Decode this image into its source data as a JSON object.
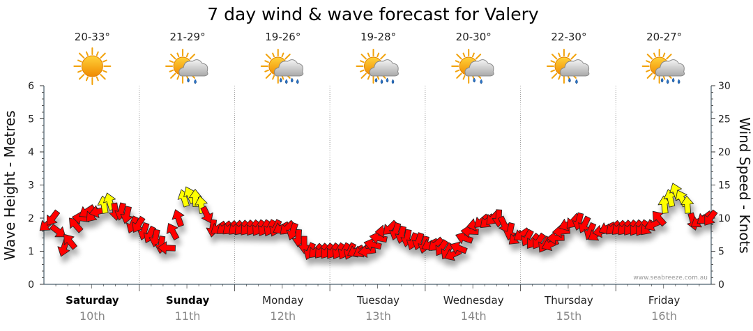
{
  "title": "7 day wind & wave forecast for Valery",
  "credit": "www.seabreeze.com.au",
  "colors": {
    "wind_normal": "#ff0000",
    "wind_strong": "#ffff00",
    "outline": "#222222",
    "grid": "#9a9a9a"
  },
  "days": [
    {
      "name": "Saturday",
      "date": "10th",
      "temp": "20-33°",
      "icon": "sun-icon",
      "bold": true
    },
    {
      "name": "Sunday",
      "date": "11th",
      "temp": "21-29°",
      "icon": "sun-cloud-showers-icon",
      "bold": true
    },
    {
      "name": "Monday",
      "date": "12th",
      "temp": "19-26°",
      "icon": "sun-cloud-rain-icon",
      "bold": false
    },
    {
      "name": "Tuesday",
      "date": "13th",
      "temp": "19-28°",
      "icon": "sun-cloud-rain-icon",
      "bold": false
    },
    {
      "name": "Wednesday",
      "date": "14th",
      "temp": "20-30°",
      "icon": "sun-cloud-showers-icon",
      "bold": false
    },
    {
      "name": "Thursday",
      "date": "15th",
      "temp": "22-30°",
      "icon": "sun-cloud-showers-icon",
      "bold": false
    },
    {
      "name": "Friday",
      "date": "16th",
      "temp": "20-27°",
      "icon": "sun-cloud-rain-icon",
      "bold": false
    }
  ],
  "chart_data": {
    "type": "line",
    "title": "7 day wind & wave forecast for Valery",
    "ylabel_left": "Wave Height - Metres",
    "ylabel_right": "Wind Speed - Knots",
    "ylim_left": [
      0,
      6
    ],
    "ylim_right": [
      0,
      30
    ],
    "yticks_left": [
      "0",
      "1",
      "2",
      "3",
      "4",
      "5",
      "6"
    ],
    "yticks_right": [
      "0",
      "5",
      "10",
      "15",
      "20",
      "25",
      "30"
    ],
    "grid": true,
    "categories": [
      "Saturday 10th",
      "Sunday 11th",
      "Monday 12th",
      "Tuesday 13th",
      "Wednesday 14th",
      "Thursday 15th",
      "Friday 16th"
    ],
    "series": [
      {
        "unit": "knots",
        "markers": "direction arrows",
        "x_days": [
          0.03,
          0.09,
          0.15,
          0.21,
          0.27,
          0.33,
          0.39,
          0.45,
          0.51,
          0.57,
          0.63,
          0.69,
          0.75,
          0.81,
          0.87,
          0.93,
          0.99,
          1.05,
          1.11,
          1.17,
          1.23,
          1.29,
          1.35,
          1.41,
          1.47,
          1.53,
          1.59,
          1.65,
          1.71,
          1.77,
          1.83,
          1.89,
          1.95,
          2.01,
          2.07,
          2.13,
          2.19,
          2.25,
          2.31,
          2.37,
          2.43,
          2.49,
          2.55,
          2.61,
          2.67,
          2.73,
          2.79,
          2.85,
          2.91,
          2.97,
          3.03,
          3.09,
          3.15,
          3.21,
          3.27,
          3.33,
          3.39,
          3.45,
          3.51,
          3.57,
          3.63,
          3.69,
          3.75,
          3.81,
          3.87,
          3.93,
          3.99,
          4.05,
          4.11,
          4.17,
          4.23,
          4.29,
          4.35,
          4.41,
          4.47,
          4.53,
          4.59,
          4.65,
          4.71,
          4.77,
          4.83,
          4.89,
          4.95,
          5.01,
          5.07,
          5.13,
          5.19,
          5.25,
          5.31,
          5.37,
          5.43,
          5.49,
          5.55,
          5.61,
          5.67,
          5.73,
          5.79,
          5.85,
          5.91,
          5.97,
          6.03,
          6.09,
          6.15,
          6.21,
          6.27,
          6.33,
          6.39,
          6.45,
          6.51,
          6.57,
          6.63,
          6.69,
          6.75,
          6.81,
          6.87,
          6.93,
          6.99
        ],
        "knots": [
          9,
          10,
          8,
          5.5,
          6.5,
          9,
          10,
          11,
          10.5,
          11,
          12,
          12.5,
          11,
          11,
          10.5,
          9,
          9,
          8,
          7.5,
          7,
          6,
          5.5,
          8,
          10,
          13,
          13.5,
          13,
          12,
          10.5,
          8.5,
          8.5,
          8.5,
          8.5,
          8.5,
          8.5,
          8.5,
          8.5,
          8.5,
          8.5,
          8.5,
          8.5,
          8.5,
          8.5,
          8,
          7,
          6,
          5,
          5,
          5,
          5,
          5,
          5,
          5,
          5,
          5,
          5,
          5,
          6,
          7,
          8,
          8.5,
          8,
          7.5,
          7,
          6.5,
          6.5,
          6,
          6,
          6,
          5.5,
          5,
          4.5,
          5.5,
          7,
          8,
          9,
          9.5,
          9.5,
          10,
          10,
          9,
          8,
          7,
          7.5,
          7,
          6.5,
          6.5,
          6,
          6,
          7,
          8,
          9,
          9.5,
          9.5,
          9,
          8,
          7.5,
          8,
          8.5,
          8.5,
          8.5,
          8.5,
          8.5,
          8.5,
          8.5,
          8.5,
          9,
          10,
          12,
          13,
          14,
          13,
          12,
          9.5,
          9.5,
          10,
          10
        ],
        "color_rule": "red below 12 knots, yellow at 12 knots and above"
      }
    ]
  }
}
